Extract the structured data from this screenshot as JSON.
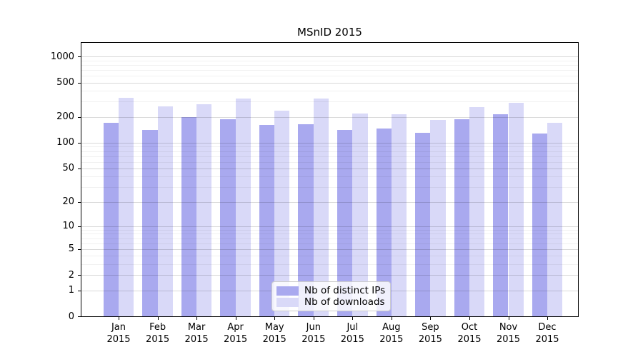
{
  "chart_data": {
    "type": "bar",
    "title": "MSnID 2015",
    "categories": [
      "Jan 2015",
      "Feb 2015",
      "Mar 2015",
      "Apr 2015",
      "May 2015",
      "Jun 2015",
      "Jul 2015",
      "Aug 2015",
      "Sep 2015",
      "Oct 2015",
      "Nov 2015",
      "Dec 2015"
    ],
    "series": [
      {
        "name": "Nb of distinct IPs",
        "color": "#a9a9ef",
        "values": [
          170,
          141,
          198,
          188,
          162,
          163,
          141,
          147,
          131,
          186,
          215,
          128
        ]
      },
      {
        "name": "Nb of downloads",
        "color": "#d9d9f8",
        "values": [
          334,
          263,
          282,
          325,
          237,
          328,
          218,
          214,
          184,
          260,
          289,
          171
        ]
      }
    ],
    "xlabel": "",
    "ylabel": "",
    "yscale": "log1p",
    "ylim": [
      0,
      1438
    ],
    "y_ticks": [
      0,
      1,
      2,
      5,
      10,
      20,
      50,
      100,
      200,
      500,
      1000
    ],
    "y_minor_gridlines": [
      3,
      4,
      6,
      7,
      8,
      9,
      30,
      40,
      60,
      70,
      80,
      90,
      300,
      400,
      600,
      700,
      800,
      900
    ],
    "grid": "horizontal",
    "legend_position": "lower center"
  }
}
